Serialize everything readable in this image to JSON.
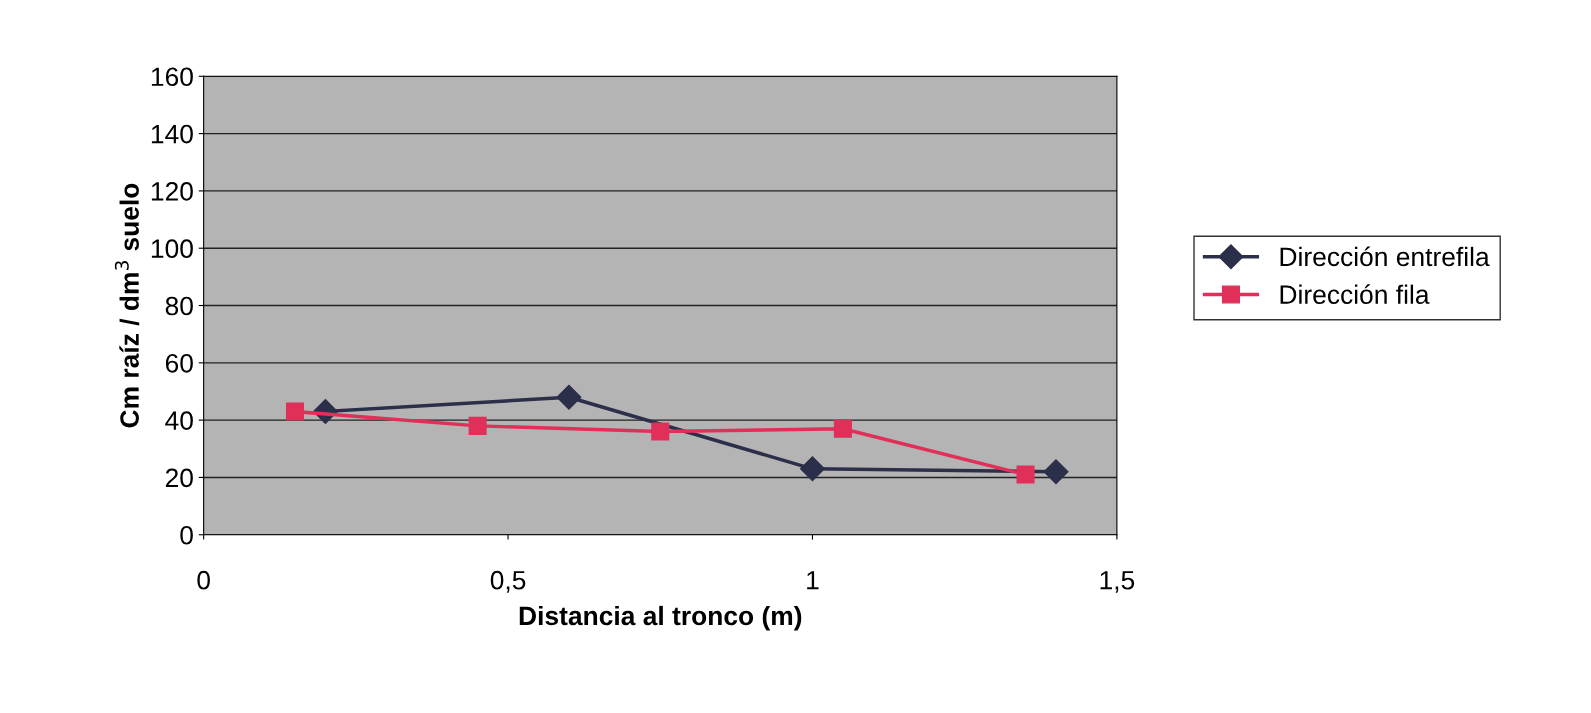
{
  "chart_data": {
    "type": "line",
    "xlabel": "Distancia al tronco (m)",
    "ylabel": "Cm raíz / dm$^{3}$ suelo",
    "series": [
      {
        "name": "Dirección entrefila",
        "color": "#2b2f4a",
        "marker": "diamond",
        "x": [
          0.2,
          0.6,
          1.0,
          1.4
        ],
        "values": [
          43,
          48,
          23,
          22
        ]
      },
      {
        "name": "Dirección fila",
        "color": "#e0305a",
        "marker": "square",
        "x": [
          0.15,
          0.45,
          0.75,
          1.05,
          1.35
        ],
        "values": [
          43,
          38,
          36,
          37,
          21
        ]
      }
    ],
    "xlim": [
      0,
      1.5
    ],
    "xticks": [
      0,
      {
        "value": 0.5,
        "label": "0,5"
      },
      1,
      {
        "value": 1.5,
        "label": "1,5"
      }
    ],
    "ylim": [
      0,
      160
    ],
    "yticks": [
      0,
      20,
      40,
      60,
      80,
      100,
      120,
      140,
      160
    ],
    "grid": "y",
    "legend": "right",
    "line_style": "solid"
  }
}
